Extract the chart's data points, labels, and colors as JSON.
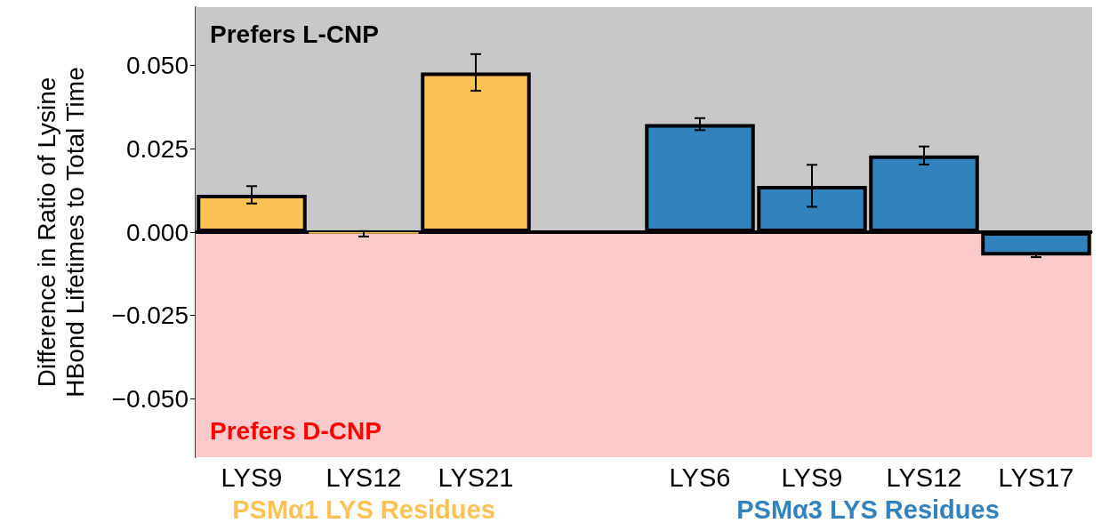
{
  "chart_data": {
    "type": "bar",
    "ylabel": "Difference in Ratio of Lysine\nHBond Lifetimes to Total Time",
    "categories": [
      "LYS9",
      "LYS12",
      "LYS21",
      null,
      "LYS6",
      "LYS9",
      "LYS12",
      "LYS17"
    ],
    "values": [
      0.0112,
      -0.0005,
      0.0479,
      null,
      0.0324,
      0.0139,
      0.023,
      -0.007
    ],
    "colors": [
      "#fdc254",
      "#fdc254",
      "#fdc254",
      null,
      "#3182bd",
      "#3182bd",
      "#3182bd",
      "#3182bd"
    ],
    "errors": [
      0.0026,
      0.0008,
      0.0055,
      null,
      0.0018,
      0.0063,
      0.0027,
      0.0005
    ],
    "ylim": [
      -0.0675,
      0.0675
    ],
    "yticks": [
      {
        "value": -0.05,
        "label": "−0.050"
      },
      {
        "value": -0.025,
        "label": "−0.025"
      },
      {
        "value": 0,
        "label": "0.000"
      },
      {
        "value": 0.025,
        "label": "0.025"
      },
      {
        "value": 0.05,
        "label": "0.050"
      }
    ],
    "bands": [
      {
        "axis": "y",
        "from": 0,
        "to": 0.0675,
        "label": "Prefers L-CNP",
        "color": "#c8c8c8"
      },
      {
        "axis": "y",
        "from": -0.0675,
        "to": 0,
        "label": "Prefers D-CNP",
        "color": "#fccaca"
      }
    ],
    "ref_lines": [
      {
        "axis": "y",
        "value": 0,
        "color": "#000000"
      }
    ],
    "annotations": [
      "PSMα1 LYS Residues",
      "PSMα3 LYS Residues"
    ],
    "grid": false
  }
}
